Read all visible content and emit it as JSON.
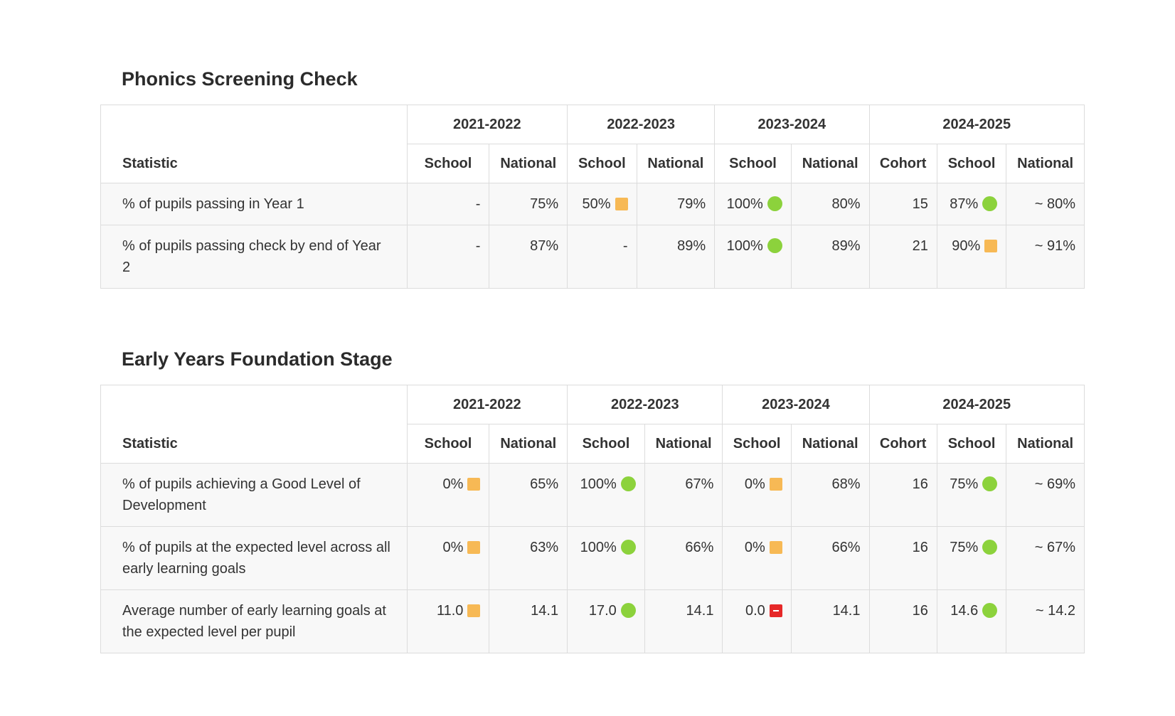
{
  "phonics": {
    "title": "Phonics Screening Check",
    "statistic_header": "Statistic",
    "years": [
      "2021-2022",
      "2022-2023",
      "2023-2024",
      "2024-2025"
    ],
    "col_school": "School",
    "col_national": "National",
    "col_cohort": "Cohort",
    "rows": [
      {
        "label": "% of pupils passing in Year 1",
        "y2122_school": "-",
        "y2122_national": "75%",
        "y2223_school": "50%",
        "y2223_school_ind": "amber-square",
        "y2223_national": "79%",
        "y2324_school": "100%",
        "y2324_school_ind": "green-circle",
        "y2324_national": "80%",
        "y2425_cohort": "15",
        "y2425_school": "87%",
        "y2425_school_ind": "green-circle",
        "y2425_national": "~ 80%"
      },
      {
        "label": "% of pupils passing check by end of Year 2",
        "y2122_school": "-",
        "y2122_national": "87%",
        "y2223_school": "-",
        "y2223_national": "89%",
        "y2324_school": "100%",
        "y2324_school_ind": "green-circle",
        "y2324_national": "89%",
        "y2425_cohort": "21",
        "y2425_school": "90%",
        "y2425_school_ind": "amber-square",
        "y2425_national": "~ 91%"
      }
    ]
  },
  "eyfs": {
    "title": "Early Years Foundation Stage",
    "statistic_header": "Statistic",
    "years": [
      "2021-2022",
      "2022-2023",
      "2023-2024",
      "2024-2025"
    ],
    "col_school": "School",
    "col_national": "National",
    "col_cohort": "Cohort",
    "rows": [
      {
        "label": "% of pupils achieving a Good Level of Development",
        "y2122_school": "0%",
        "y2122_school_ind": "amber-square",
        "y2122_national": "65%",
        "y2223_school": "100%",
        "y2223_school_ind": "green-circle",
        "y2223_national": "67%",
        "y2324_school": "0%",
        "y2324_school_ind": "amber-square",
        "y2324_national": "68%",
        "y2425_cohort": "16",
        "y2425_school": "75%",
        "y2425_school_ind": "green-circle",
        "y2425_national": "~ 69%"
      },
      {
        "label": "% of pupils at the expected level across all early learning goals",
        "y2122_school": "0%",
        "y2122_school_ind": "amber-square",
        "y2122_national": "63%",
        "y2223_school": "100%",
        "y2223_school_ind": "green-circle",
        "y2223_national": "66%",
        "y2324_school": "0%",
        "y2324_school_ind": "amber-square",
        "y2324_national": "66%",
        "y2425_cohort": "16",
        "y2425_school": "75%",
        "y2425_school_ind": "green-circle",
        "y2425_national": "~ 67%"
      },
      {
        "label": "Average number of early learning goals at the expected level per pupil",
        "y2122_school": "11.0",
        "y2122_school_ind": "amber-square",
        "y2122_national": "14.1",
        "y2223_school": "17.0",
        "y2223_school_ind": "green-circle",
        "y2223_national": "14.1",
        "y2324_school": "0.0",
        "y2324_school_ind": "red-minus-square",
        "y2324_national": "14.1",
        "y2425_cohort": "16",
        "y2425_school": "14.6",
        "y2425_school_ind": "green-circle",
        "y2425_national": "~ 14.2"
      }
    ]
  },
  "colors": {
    "good": "#8cd23c",
    "average": "#f7b955",
    "below": "#e62828",
    "border": "#dcdcdc",
    "row_bg": "#f8f8f8"
  }
}
